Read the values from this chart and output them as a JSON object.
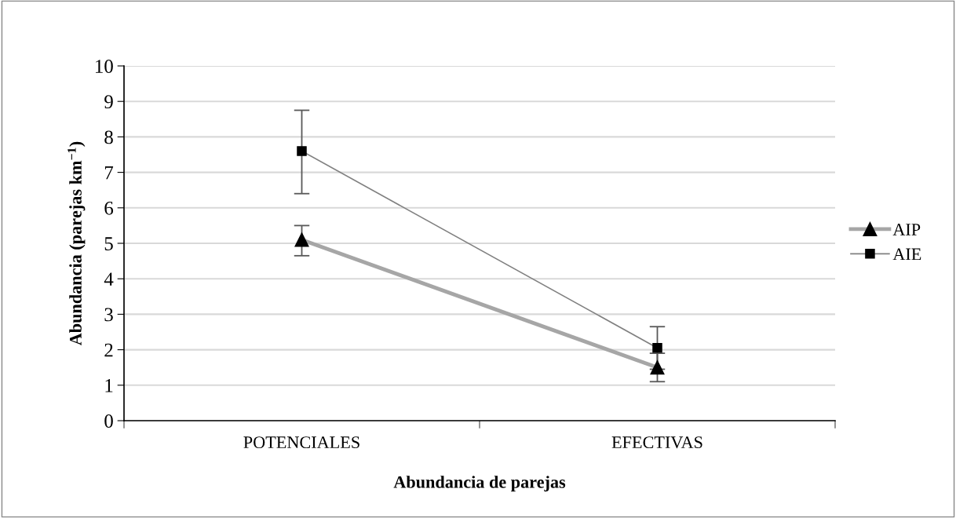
{
  "chart_data": {
    "type": "line",
    "xlabel": "Abundancia de parejas",
    "ylabel": "Abundancia (parejas km$^{−1}$)",
    "categories": [
      "POTENCIALES",
      "EFECTIVAS"
    ],
    "series": [
      {
        "name": "AIP",
        "color": "#a6a6a6",
        "values": [
          5.1,
          1.5
        ],
        "errors": [
          [
            4.65,
            5.5
          ],
          0.4
        ],
        "marker": "triangle"
      },
      {
        "name": "AIE",
        "color": "#808080",
        "values": [
          7.6,
          2.05
        ],
        "errors": [
          [
            6.4,
            8.75
          ],
          0.6
        ],
        "marker": "square"
      }
    ],
    "ylim": [
      0,
      10
    ],
    "yticks": [
      0,
      1,
      2,
      3,
      4,
      5,
      6,
      7,
      8,
      9,
      10
    ],
    "grid": "y",
    "legend": "right",
    "line_style": "solid"
  }
}
